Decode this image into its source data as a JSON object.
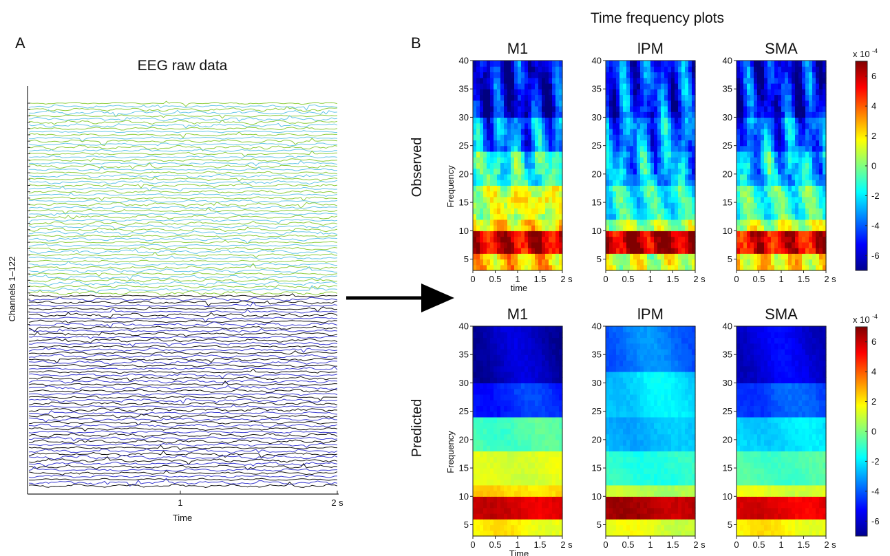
{
  "figure": {
    "panel_a_letter": "A",
    "panel_b_letter": "B",
    "panel_b_title": "Time frequency plots",
    "row_observed": "Observed",
    "row_predicted": "Predicted"
  },
  "chart_data": [
    {
      "type": "line",
      "title": "EEG raw data",
      "ylabel": "Channels 1–122",
      "xlabel": "Time",
      "x_ticks": [
        "1",
        "2 s"
      ],
      "xlim": [
        0,
        2
      ],
      "n_channels": 122,
      "groups": [
        {
          "channels": [
            1,
            61
          ],
          "colors": [
            "#8ccd3c",
            "#67c7e6"
          ]
        },
        {
          "channels": [
            62,
            122
          ],
          "colors": [
            "#3b3bd0",
            "#111111"
          ]
        }
      ]
    },
    {
      "type": "heatmap",
      "row": "Observed",
      "title": "M1",
      "ylabel": "Frequency",
      "xlabel": "time",
      "x_ticks": [
        "0",
        "0.5",
        "1",
        "1.5",
        "2 s"
      ],
      "y_ticks": [
        "5",
        "10",
        "15",
        "20",
        "25",
        "30",
        "35",
        "40"
      ],
      "xlim": [
        0,
        2
      ],
      "ylim": [
        3,
        40
      ],
      "clim": [
        -7,
        7
      ],
      "freq_band_power": [
        {
          "band": [
            3,
            6
          ],
          "value": 2.5
        },
        {
          "band": [
            6,
            10
          ],
          "value": 5.8
        },
        {
          "band": [
            10,
            12
          ],
          "value": 2.0
        },
        {
          "band": [
            12,
            18
          ],
          "value": 0.8
        },
        {
          "band": [
            18,
            24
          ],
          "value": -1.2
        },
        {
          "band": [
            24,
            30
          ],
          "value": -3.5
        },
        {
          "band": [
            30,
            40
          ],
          "value": -5.5
        }
      ],
      "hotspots": [
        {
          "t": 0.9,
          "f": 15,
          "value": 2.5
        },
        {
          "t": 1.55,
          "f": 15,
          "value": 2.5
        }
      ]
    },
    {
      "type": "heatmap",
      "row": "Observed",
      "title": "lPM",
      "x_ticks": [
        "0",
        "0.5",
        "1",
        "1.5",
        "2 s"
      ],
      "y_ticks": [
        "5",
        "10",
        "15",
        "20",
        "25",
        "30",
        "35",
        "40"
      ],
      "xlim": [
        0,
        2
      ],
      "ylim": [
        3,
        40
      ],
      "clim": [
        -7,
        7
      ],
      "freq_band_power": [
        {
          "band": [
            3,
            6
          ],
          "value": 1.0
        },
        {
          "band": [
            6,
            10
          ],
          "value": 6.2
        },
        {
          "band": [
            10,
            12
          ],
          "value": 0.5
        },
        {
          "band": [
            12,
            18
          ],
          "value": -1.5
        },
        {
          "band": [
            18,
            24
          ],
          "value": -2.8
        },
        {
          "band": [
            24,
            30
          ],
          "value": -3.5
        },
        {
          "band": [
            30,
            40
          ],
          "value": -4.5
        }
      ]
    },
    {
      "type": "heatmap",
      "row": "Observed",
      "title": "SMA",
      "x_ticks": [
        "0",
        "0.5",
        "1",
        "1.5",
        "2 s"
      ],
      "y_ticks": [
        "5",
        "10",
        "15",
        "20",
        "25",
        "30",
        "35",
        "40"
      ],
      "xlim": [
        0,
        2
      ],
      "ylim": [
        3,
        40
      ],
      "clim": [
        -7,
        7
      ],
      "freq_band_power": [
        {
          "band": [
            3,
            6
          ],
          "value": 2.0
        },
        {
          "band": [
            6,
            10
          ],
          "value": 5.5
        },
        {
          "band": [
            10,
            12
          ],
          "value": 1.0
        },
        {
          "band": [
            12,
            18
          ],
          "value": -1.0
        },
        {
          "band": [
            18,
            24
          ],
          "value": -2.5
        },
        {
          "band": [
            24,
            30
          ],
          "value": -3.8
        },
        {
          "band": [
            30,
            40
          ],
          "value": -5.2
        }
      ]
    },
    {
      "type": "heatmap",
      "row": "Predicted",
      "title": "M1",
      "ylabel": "Frequency",
      "xlabel": "Time",
      "x_ticks": [
        "0",
        "0.5",
        "1",
        "1.5",
        "2 s"
      ],
      "y_ticks": [
        "5",
        "10",
        "15",
        "20",
        "25",
        "30",
        "35",
        "40"
      ],
      "xlim": [
        0,
        2
      ],
      "ylim": [
        3,
        40
      ],
      "clim": [
        -7,
        7
      ],
      "freq_band_power": [
        {
          "band": [
            3,
            6
          ],
          "value": 2.0
        },
        {
          "band": [
            6,
            10
          ],
          "value": 6.0
        },
        {
          "band": [
            10,
            12
          ],
          "value": 2.5
        },
        {
          "band": [
            12,
            18
          ],
          "value": 1.5
        },
        {
          "band": [
            18,
            24
          ],
          "value": -0.5
        },
        {
          "band": [
            24,
            30
          ],
          "value": -4.5
        },
        {
          "band": [
            30,
            40
          ],
          "value": -6.0
        }
      ]
    },
    {
      "type": "heatmap",
      "row": "Predicted",
      "title": "lPM",
      "x_ticks": [
        "0",
        "0.5",
        "1",
        "1.5",
        "2 s"
      ],
      "y_ticks": [
        "5",
        "10",
        "15",
        "20",
        "25",
        "30",
        "35",
        "40"
      ],
      "xlim": [
        0,
        2
      ],
      "ylim": [
        3,
        40
      ],
      "clim": [
        -7,
        7
      ],
      "freq_band_power": [
        {
          "band": [
            3,
            6
          ],
          "value": 1.5
        },
        {
          "band": [
            6,
            10
          ],
          "value": 6.5
        },
        {
          "band": [
            10,
            12
          ],
          "value": 1.0
        },
        {
          "band": [
            12,
            18
          ],
          "value": -1.0
        },
        {
          "band": [
            18,
            24
          ],
          "value": -2.5
        },
        {
          "band": [
            24,
            32
          ],
          "value": -2.0
        },
        {
          "band": [
            32,
            40
          ],
          "value": -3.5
        }
      ]
    },
    {
      "type": "heatmap",
      "row": "Predicted",
      "title": "SMA",
      "x_ticks": [
        "0",
        "0.5",
        "1",
        "1.5",
        "2 s"
      ],
      "y_ticks": [
        "5",
        "10",
        "15",
        "20",
        "25",
        "30",
        "35",
        "40"
      ],
      "xlim": [
        0,
        2
      ],
      "ylim": [
        3,
        40
      ],
      "clim": [
        -7,
        7
      ],
      "freq_band_power": [
        {
          "band": [
            3,
            6
          ],
          "value": 2.0
        },
        {
          "band": [
            6,
            10
          ],
          "value": 5.8
        },
        {
          "band": [
            10,
            12
          ],
          "value": 1.5
        },
        {
          "band": [
            12,
            18
          ],
          "value": -0.5
        },
        {
          "band": [
            18,
            24
          ],
          "value": -2.0
        },
        {
          "band": [
            24,
            30
          ],
          "value": -4.0
        },
        {
          "band": [
            30,
            40
          ],
          "value": -5.5
        }
      ]
    }
  ],
  "colorbar": {
    "exponent_label": "x 10",
    "exponent_power": "-4",
    "ticks": [
      "6",
      "4",
      "2",
      "0",
      "-2",
      "-4",
      "-6"
    ],
    "range": [
      -7,
      7
    ],
    "colormap": "jet"
  }
}
